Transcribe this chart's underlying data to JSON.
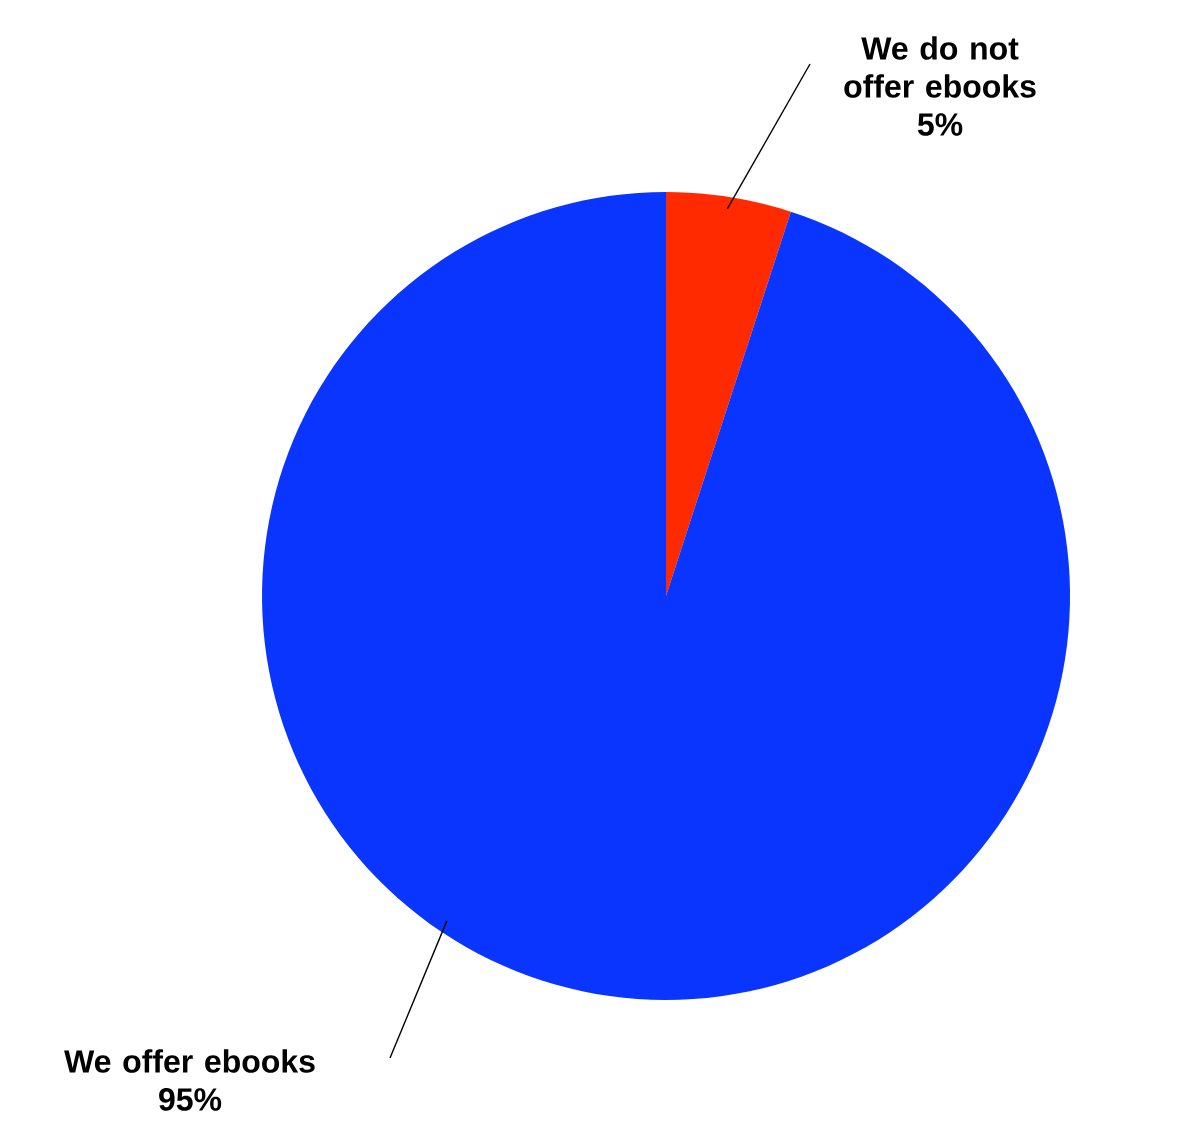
{
  "chart_data": {
    "type": "pie",
    "categories": [
      "We do not offer ebooks",
      "We offer ebooks"
    ],
    "values": [
      5,
      95
    ],
    "value_labels": [
      "5%",
      "95%"
    ],
    "colors": [
      "#ff2a00",
      "#0a35ff"
    ]
  }
}
